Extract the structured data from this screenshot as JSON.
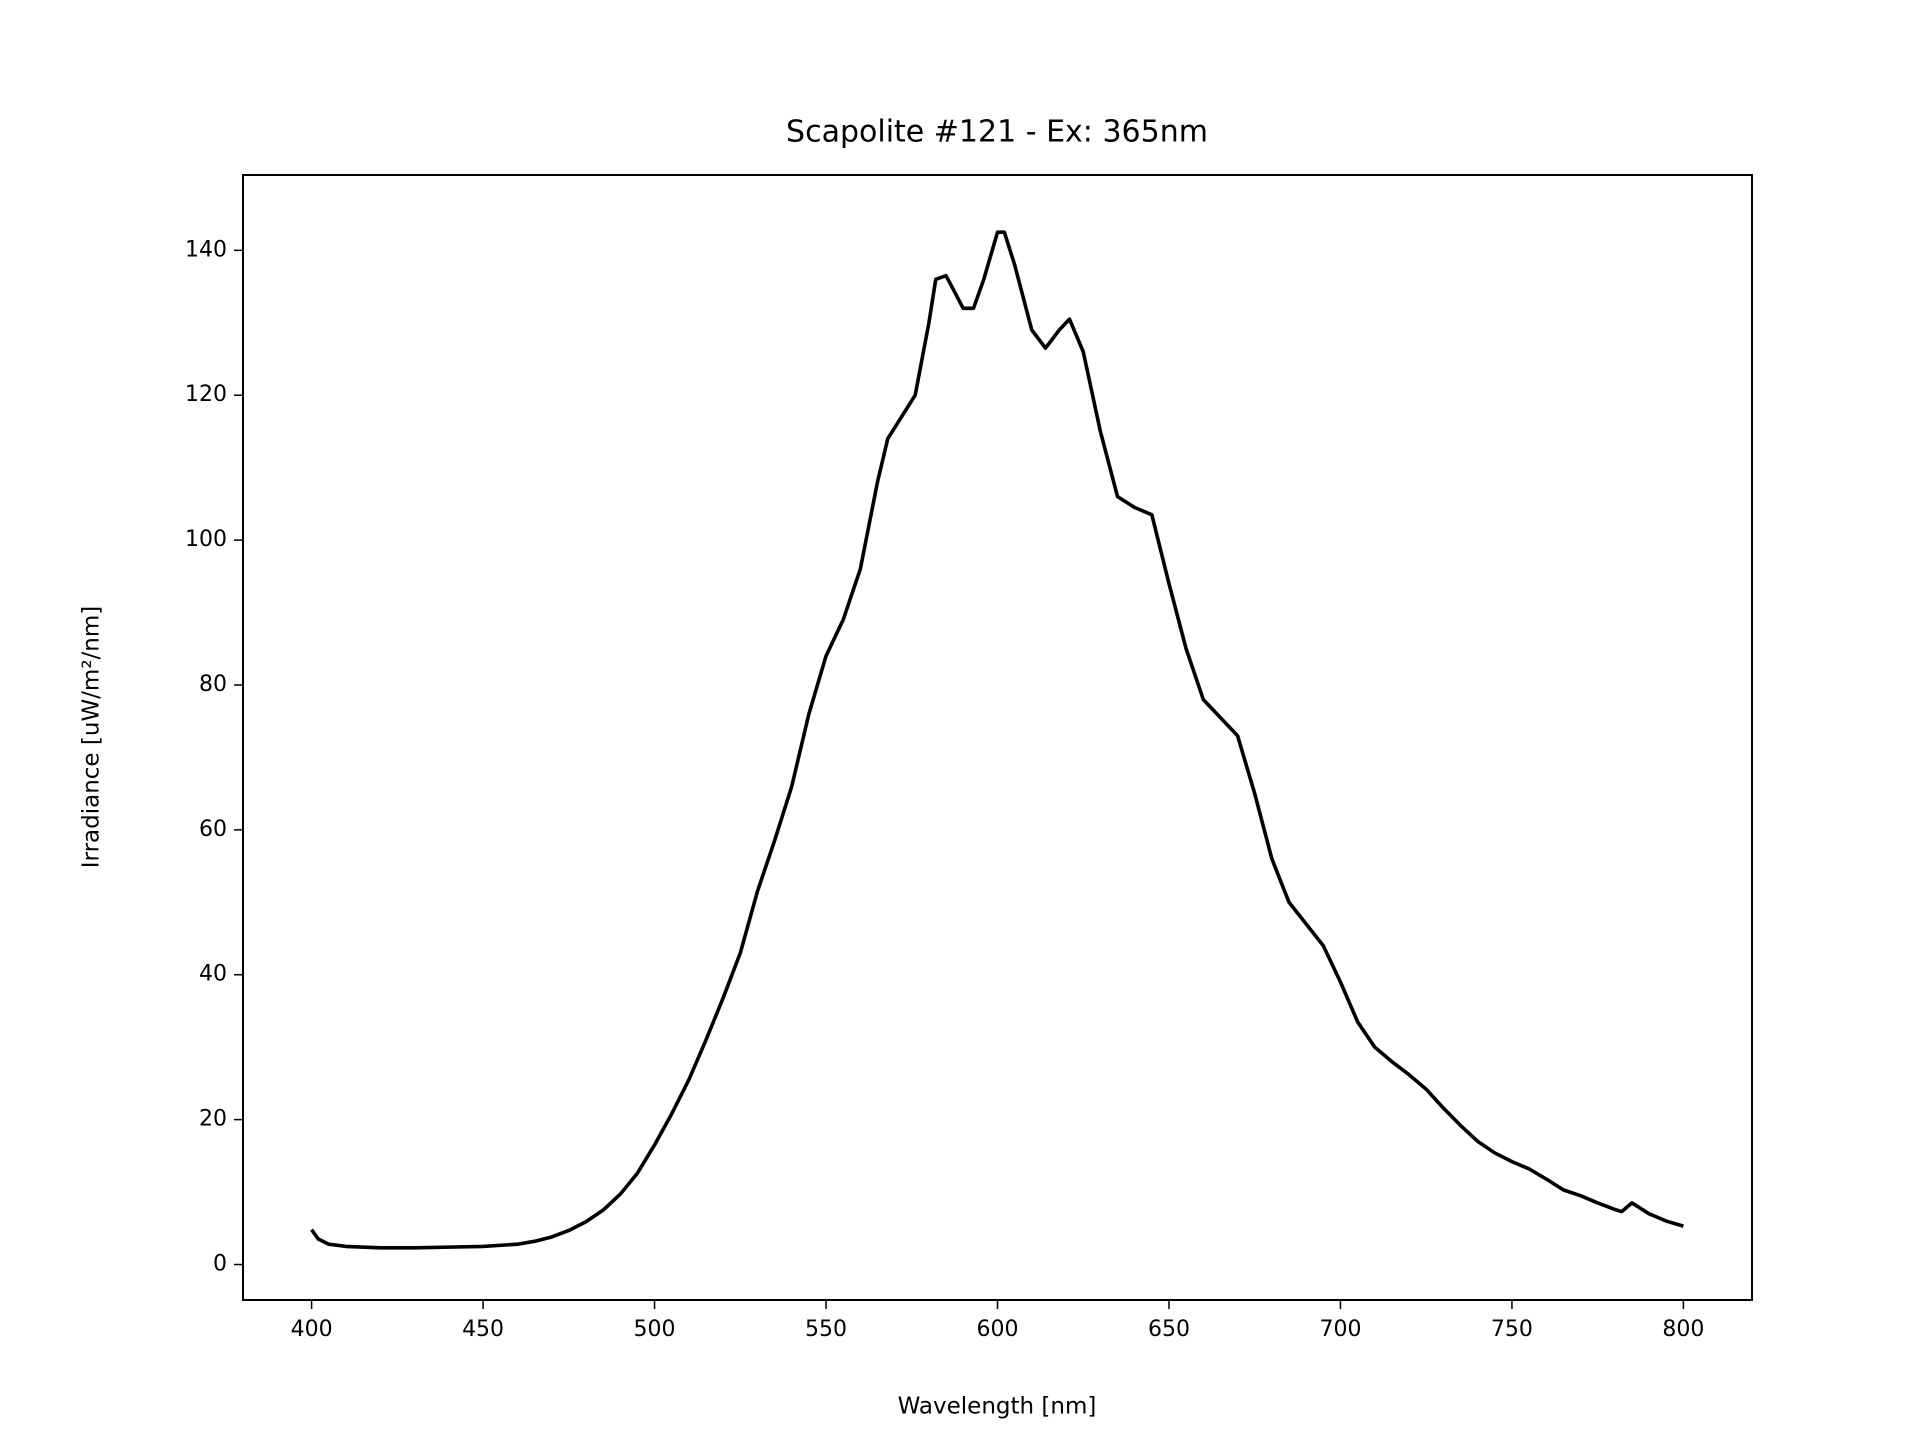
{
  "chart_data": {
    "type": "line",
    "title": "Scapolite #121 - Ex: 365nm",
    "x_label": "Wavelength [nm]",
    "y_label": "Irradiance [uW/m²/nm]",
    "x": [
      400,
      402,
      405,
      410,
      420,
      430,
      440,
      450,
      460,
      465,
      470,
      475,
      480,
      485,
      490,
      495,
      500,
      505,
      510,
      515,
      520,
      525,
      530,
      535,
      540,
      545,
      550,
      555,
      560,
      565,
      568,
      572,
      576,
      580,
      582,
      585,
      590,
      593,
      596,
      600,
      602,
      605,
      610,
      614,
      618,
      621,
      625,
      630,
      635,
      640,
      645,
      650,
      655,
      660,
      665,
      670,
      675,
      680,
      685,
      690,
      695,
      700,
      705,
      710,
      715,
      720,
      725,
      730,
      735,
      740,
      745,
      750,
      755,
      760,
      765,
      770,
      775,
      780,
      782,
      785,
      790,
      795,
      800
    ],
    "series": [
      {
        "name": "Scapolite #121",
        "color": "#000000",
        "values": [
          4.8,
          3.5,
          2.8,
          2.5,
          2.3,
          2.3,
          2.4,
          2.5,
          2.8,
          3.2,
          3.8,
          4.7,
          5.9,
          7.5,
          9.7,
          12.6,
          16.5,
          20.8,
          25.5,
          31,
          36.8,
          43,
          51.5,
          58.5,
          66,
          76,
          84,
          89,
          96,
          108,
          114,
          117,
          120,
          130,
          136,
          136.5,
          132,
          132,
          136,
          142.5,
          142.5,
          138,
          129,
          126.5,
          129,
          130.5,
          126,
          115,
          106,
          104.5,
          103.5,
          94,
          85,
          78,
          75.5,
          73,
          65,
          56,
          50,
          47,
          44,
          39,
          33.5,
          30,
          28,
          26.2,
          24.2,
          21.6,
          19.2,
          17,
          15.4,
          14.2,
          13.2,
          11.8,
          10.3,
          9.5,
          8.5,
          7.6,
          7.3,
          8.5,
          7,
          6,
          5.3
        ]
      }
    ],
    "xlim": [
      380,
      820
    ],
    "xticks": [
      400,
      450,
      500,
      550,
      600,
      650,
      700,
      750,
      800
    ],
    "ylim": [
      -4.9,
      150.4
    ],
    "yticks": [
      0,
      20,
      40,
      60,
      80,
      100,
      120,
      140
    ],
    "grid": false
  }
}
